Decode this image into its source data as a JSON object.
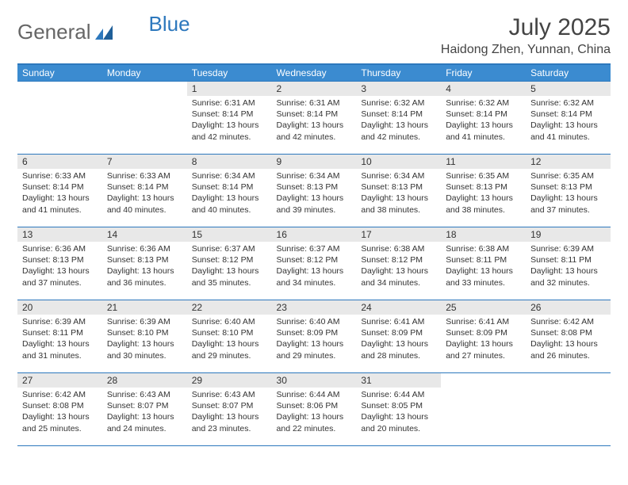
{
  "logo": {
    "text1": "General",
    "text2": "Blue"
  },
  "title": "July 2025",
  "location": "Haidong Zhen, Yunnan, China",
  "colors": {
    "header_bg": "#3b8bd0",
    "border": "#2d78bd",
    "daynum_bg": "#e8e8e8",
    "text": "#333333"
  },
  "weekdays": [
    "Sunday",
    "Monday",
    "Tuesday",
    "Wednesday",
    "Thursday",
    "Friday",
    "Saturday"
  ],
  "weeks": [
    [
      null,
      null,
      {
        "n": "1",
        "sr": "6:31 AM",
        "ss": "8:14 PM",
        "dl": "13 hours and 42 minutes."
      },
      {
        "n": "2",
        "sr": "6:31 AM",
        "ss": "8:14 PM",
        "dl": "13 hours and 42 minutes."
      },
      {
        "n": "3",
        "sr": "6:32 AM",
        "ss": "8:14 PM",
        "dl": "13 hours and 42 minutes."
      },
      {
        "n": "4",
        "sr": "6:32 AM",
        "ss": "8:14 PM",
        "dl": "13 hours and 41 minutes."
      },
      {
        "n": "5",
        "sr": "6:32 AM",
        "ss": "8:14 PM",
        "dl": "13 hours and 41 minutes."
      }
    ],
    [
      {
        "n": "6",
        "sr": "6:33 AM",
        "ss": "8:14 PM",
        "dl": "13 hours and 41 minutes."
      },
      {
        "n": "7",
        "sr": "6:33 AM",
        "ss": "8:14 PM",
        "dl": "13 hours and 40 minutes."
      },
      {
        "n": "8",
        "sr": "6:34 AM",
        "ss": "8:14 PM",
        "dl": "13 hours and 40 minutes."
      },
      {
        "n": "9",
        "sr": "6:34 AM",
        "ss": "8:13 PM",
        "dl": "13 hours and 39 minutes."
      },
      {
        "n": "10",
        "sr": "6:34 AM",
        "ss": "8:13 PM",
        "dl": "13 hours and 38 minutes."
      },
      {
        "n": "11",
        "sr": "6:35 AM",
        "ss": "8:13 PM",
        "dl": "13 hours and 38 minutes."
      },
      {
        "n": "12",
        "sr": "6:35 AM",
        "ss": "8:13 PM",
        "dl": "13 hours and 37 minutes."
      }
    ],
    [
      {
        "n": "13",
        "sr": "6:36 AM",
        "ss": "8:13 PM",
        "dl": "13 hours and 37 minutes."
      },
      {
        "n": "14",
        "sr": "6:36 AM",
        "ss": "8:13 PM",
        "dl": "13 hours and 36 minutes."
      },
      {
        "n": "15",
        "sr": "6:37 AM",
        "ss": "8:12 PM",
        "dl": "13 hours and 35 minutes."
      },
      {
        "n": "16",
        "sr": "6:37 AM",
        "ss": "8:12 PM",
        "dl": "13 hours and 34 minutes."
      },
      {
        "n": "17",
        "sr": "6:38 AM",
        "ss": "8:12 PM",
        "dl": "13 hours and 34 minutes."
      },
      {
        "n": "18",
        "sr": "6:38 AM",
        "ss": "8:11 PM",
        "dl": "13 hours and 33 minutes."
      },
      {
        "n": "19",
        "sr": "6:39 AM",
        "ss": "8:11 PM",
        "dl": "13 hours and 32 minutes."
      }
    ],
    [
      {
        "n": "20",
        "sr": "6:39 AM",
        "ss": "8:11 PM",
        "dl": "13 hours and 31 minutes."
      },
      {
        "n": "21",
        "sr": "6:39 AM",
        "ss": "8:10 PM",
        "dl": "13 hours and 30 minutes."
      },
      {
        "n": "22",
        "sr": "6:40 AM",
        "ss": "8:10 PM",
        "dl": "13 hours and 29 minutes."
      },
      {
        "n": "23",
        "sr": "6:40 AM",
        "ss": "8:09 PM",
        "dl": "13 hours and 29 minutes."
      },
      {
        "n": "24",
        "sr": "6:41 AM",
        "ss": "8:09 PM",
        "dl": "13 hours and 28 minutes."
      },
      {
        "n": "25",
        "sr": "6:41 AM",
        "ss": "8:09 PM",
        "dl": "13 hours and 27 minutes."
      },
      {
        "n": "26",
        "sr": "6:42 AM",
        "ss": "8:08 PM",
        "dl": "13 hours and 26 minutes."
      }
    ],
    [
      {
        "n": "27",
        "sr": "6:42 AM",
        "ss": "8:08 PM",
        "dl": "13 hours and 25 minutes."
      },
      {
        "n": "28",
        "sr": "6:43 AM",
        "ss": "8:07 PM",
        "dl": "13 hours and 24 minutes."
      },
      {
        "n": "29",
        "sr": "6:43 AM",
        "ss": "8:07 PM",
        "dl": "13 hours and 23 minutes."
      },
      {
        "n": "30",
        "sr": "6:44 AM",
        "ss": "8:06 PM",
        "dl": "13 hours and 22 minutes."
      },
      {
        "n": "31",
        "sr": "6:44 AM",
        "ss": "8:05 PM",
        "dl": "13 hours and 20 minutes."
      },
      null,
      null
    ]
  ],
  "labels": {
    "sunrise": "Sunrise:",
    "sunset": "Sunset:",
    "daylight": "Daylight:"
  }
}
